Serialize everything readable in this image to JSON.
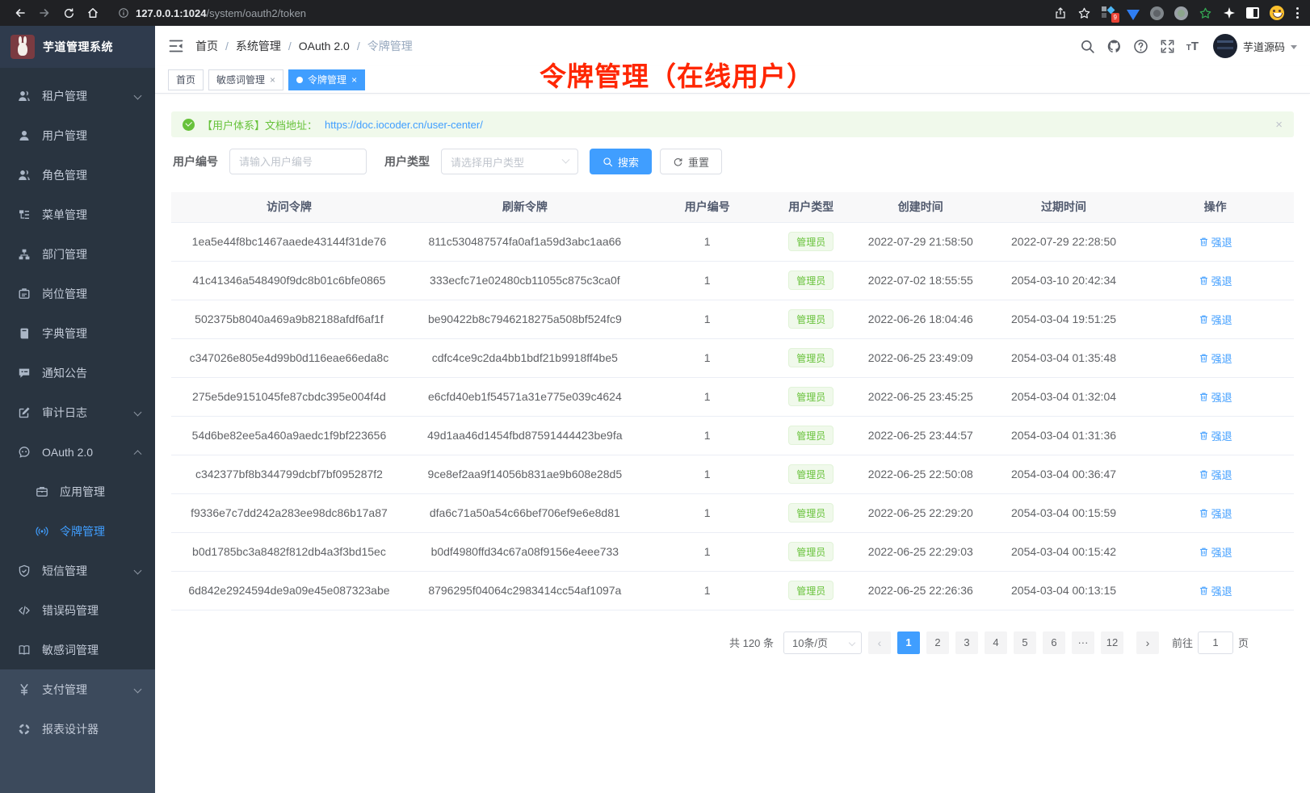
{
  "colors": {
    "accent": "#409eff",
    "success": "#67c23a",
    "annotation_red": "#ff2600"
  },
  "browser": {
    "url_host": "127.0.0.1:1024",
    "url_path": "/system/oauth2/token",
    "extension_badge": "9"
  },
  "sidebar": {
    "logo_title": "芋道管理系统",
    "menu": [
      {
        "label": "租户管理",
        "icon": "tenants",
        "arrow": "down"
      },
      {
        "label": "用户管理",
        "icon": "user"
      },
      {
        "label": "角色管理",
        "icon": "roles"
      },
      {
        "label": "菜单管理",
        "icon": "menu"
      },
      {
        "label": "部门管理",
        "icon": "dept"
      },
      {
        "label": "岗位管理",
        "icon": "post"
      },
      {
        "label": "字典管理",
        "icon": "dict"
      },
      {
        "label": "通知公告",
        "icon": "notice"
      },
      {
        "label": "审计日志",
        "icon": "log",
        "arrow": "down"
      },
      {
        "label": "OAuth 2.0",
        "icon": "oauth",
        "arrow": "up"
      },
      {
        "label": "应用管理",
        "icon": "app",
        "sub": true
      },
      {
        "label": "令牌管理",
        "icon": "token",
        "sub": true,
        "active": true
      },
      {
        "label": "短信管理",
        "icon": "sms",
        "arrow": "down"
      },
      {
        "label": "错误码管理",
        "icon": "code"
      },
      {
        "label": "敏感词管理",
        "icon": "book"
      }
    ],
    "menu_bottom": [
      {
        "label": "支付管理",
        "icon": "pay",
        "arrow": "down"
      },
      {
        "label": "报表设计器",
        "icon": "report"
      }
    ]
  },
  "header": {
    "breadcrumb": [
      "首页",
      "系统管理",
      "OAuth 2.0",
      "令牌管理"
    ],
    "username": "芋道源码"
  },
  "tags": [
    {
      "label": "首页",
      "closable": false,
      "active": false,
      "dot": false
    },
    {
      "label": "敏感词管理",
      "closable": true,
      "active": false,
      "dot": false
    },
    {
      "label": "令牌管理",
      "closable": true,
      "active": true,
      "dot": true
    }
  ],
  "annotation": "令牌管理（在线用户）",
  "alert": {
    "text": "【用户体系】文档地址：",
    "link": "https://doc.iocoder.cn/user-center/"
  },
  "filters": {
    "user_id_label": "用户编号",
    "user_id_placeholder": "请输入用户编号",
    "user_type_label": "用户类型",
    "user_type_placeholder": "请选择用户类型",
    "search_label": "搜索",
    "reset_label": "重置"
  },
  "table": {
    "columns": [
      "访问令牌",
      "刷新令牌",
      "用户编号",
      "用户类型",
      "创建时间",
      "过期时间",
      "操作"
    ],
    "action_label": "强退",
    "rows": [
      {
        "access": "1ea5e44f8bc1467aaede43144f31de76",
        "refresh": "811c530487574fa0af1a59d3abc1aa66",
        "user_id": "1",
        "user_type": "管理员",
        "created": "2022-07-29 21:58:50",
        "expires": "2022-07-29 22:28:50"
      },
      {
        "access": "41c41346a548490f9dc8b01c6bfe0865",
        "refresh": "333ecfc71e02480cb11055c875c3ca0f",
        "user_id": "1",
        "user_type": "管理员",
        "created": "2022-07-02 18:55:55",
        "expires": "2054-03-10 20:42:34"
      },
      {
        "access": "502375b8040a469a9b82188afdf6af1f",
        "refresh": "be90422b8c7946218275a508bf524fc9",
        "user_id": "1",
        "user_type": "管理员",
        "created": "2022-06-26 18:04:46",
        "expires": "2054-03-04 19:51:25"
      },
      {
        "access": "c347026e805e4d99b0d116eae66eda8c",
        "refresh": "cdfc4ce9c2da4bb1bdf21b9918ff4be5",
        "user_id": "1",
        "user_type": "管理员",
        "created": "2022-06-25 23:49:09",
        "expires": "2054-03-04 01:35:48"
      },
      {
        "access": "275e5de9151045fe87cbdc395e004f4d",
        "refresh": "e6cfd40eb1f54571a31e775e039c4624",
        "user_id": "1",
        "user_type": "管理员",
        "created": "2022-06-25 23:45:25",
        "expires": "2054-03-04 01:32:04"
      },
      {
        "access": "54d6be82ee5a460a9aedc1f9bf223656",
        "refresh": "49d1aa46d1454fbd87591444423be9fa",
        "user_id": "1",
        "user_type": "管理员",
        "created": "2022-06-25 23:44:57",
        "expires": "2054-03-04 01:31:36"
      },
      {
        "access": "c342377bf8b344799dcbf7bf095287f2",
        "refresh": "9ce8ef2aa9f14056b831ae9b608e28d5",
        "user_id": "1",
        "user_type": "管理员",
        "created": "2022-06-25 22:50:08",
        "expires": "2054-03-04 00:36:47"
      },
      {
        "access": "f9336e7c7dd242a283ee98dc86b17a87",
        "refresh": "dfa6c71a50a54c66bef706ef9e6e8d81",
        "user_id": "1",
        "user_type": "管理员",
        "created": "2022-06-25 22:29:20",
        "expires": "2054-03-04 00:15:59"
      },
      {
        "access": "b0d1785bc3a8482f812db4a3f3bd15ec",
        "refresh": "b0df4980ffd34c67a08f9156e4eee733",
        "user_id": "1",
        "user_type": "管理员",
        "created": "2022-06-25 22:29:03",
        "expires": "2054-03-04 00:15:42"
      },
      {
        "access": "6d842e2924594de9a09e45e087323abe",
        "refresh": "8796295f04064c2983414cc54af1097a",
        "user_id": "1",
        "user_type": "管理员",
        "created": "2022-06-25 22:26:36",
        "expires": "2054-03-04 00:13:15"
      }
    ]
  },
  "pagination": {
    "total_label": "共 120 条",
    "per_page": "10条/页",
    "pages": [
      "1",
      "2",
      "3",
      "4",
      "5",
      "6",
      "···",
      "12"
    ],
    "active_page": "1",
    "prev": "‹",
    "next": "›",
    "goto_label": "前往",
    "goto_value": "1",
    "page_suffix": "页"
  }
}
